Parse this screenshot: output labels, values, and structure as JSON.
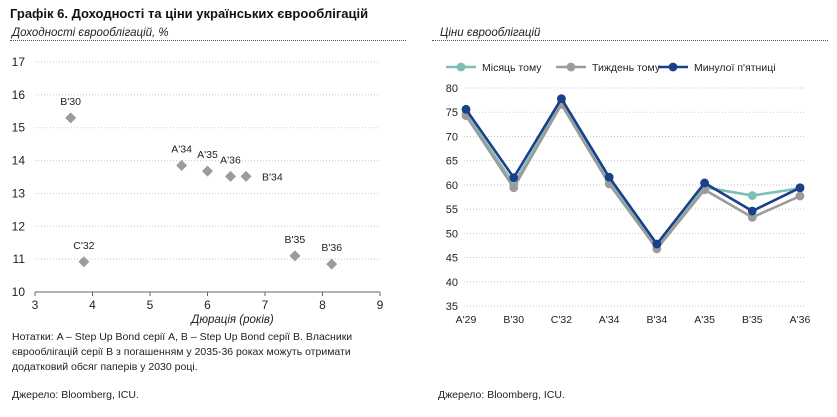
{
  "header": {
    "title": "Графік 6. Доходності та ціни українських єврооблігацій"
  },
  "left": {
    "subtitle": "Доходності єврооблігацій, %",
    "note": "Нотатки: A – Step Up Bond серії A, B – Step Up Bond серії B. Власники єврооблігацій серії B з погашенням у 2035-36 роках можуть отримати додатковий обсяг паперів у 2030 році.",
    "source": "Джерело: Bloomberg, ICU."
  },
  "right": {
    "subtitle": "Ціни єврооблігацій",
    "source": "Джерело: Bloomberg, ICU."
  },
  "chart_data": [
    {
      "type": "scatter",
      "title": "Доходності єврооблігацій, %",
      "xlabel": "Дюрація (років)",
      "ylabel": "",
      "xlim": [
        3,
        9
      ],
      "ylim": [
        10,
        17
      ],
      "xticks": [
        3,
        4,
        5,
        6,
        7,
        8,
        9
      ],
      "yticks": [
        10,
        11,
        12,
        13,
        14,
        15,
        16,
        17
      ],
      "color": "#9b9b9b",
      "points": [
        {
          "label": "B'30",
          "x": 3.62,
          "y": 15.3
        },
        {
          "label": "C'32",
          "x": 3.85,
          "y": 10.92
        },
        {
          "label": "A'34",
          "x": 5.55,
          "y": 13.85
        },
        {
          "label": "A'35",
          "x": 6.0,
          "y": 13.68
        },
        {
          "label": "A'36",
          "x": 6.4,
          "y": 13.52
        },
        {
          "label": "B'34",
          "x": 6.67,
          "y": 13.52
        },
        {
          "label": "B'35",
          "x": 7.52,
          "y": 11.1
        },
        {
          "label": "B'36",
          "x": 8.16,
          "y": 10.85
        }
      ]
    },
    {
      "type": "line",
      "title": "Ціни єврооблігацій",
      "xlabel": "",
      "ylabel": "",
      "categories": [
        "A'29",
        "B'30",
        "C'32",
        "A'34",
        "B'34",
        "A'35",
        "B'35",
        "A'36"
      ],
      "ylim": [
        35,
        80
      ],
      "yticks": [
        35,
        40,
        45,
        50,
        55,
        60,
        65,
        70,
        75,
        80
      ],
      "legend": "top",
      "series": [
        {
          "name": "Місяць тому",
          "color": "#7fbfb3",
          "values": [
            74.8,
            60.2,
            77.0,
            60.8,
            47.5,
            59.5,
            57.8,
            59.3
          ]
        },
        {
          "name": "Тиждень тому",
          "color": "#9b9b9b",
          "values": [
            74.3,
            59.4,
            76.6,
            60.2,
            46.8,
            59.0,
            53.3,
            57.7
          ]
        },
        {
          "name": "Минулої п'ятниці",
          "color": "#1b3f8b",
          "values": [
            75.6,
            61.5,
            77.8,
            61.6,
            47.8,
            60.4,
            54.6,
            59.4
          ]
        }
      ]
    }
  ]
}
